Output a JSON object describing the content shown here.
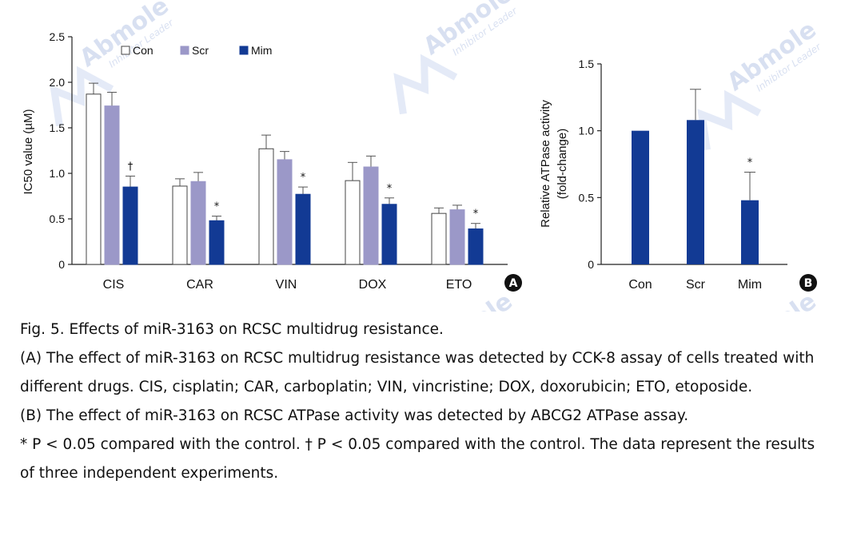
{
  "chart_data": [
    {
      "panel": "A",
      "type": "bar",
      "ylabel": "IC50 value (µM)",
      "ylim": [
        0,
        2.5
      ],
      "yticks": [
        "2.5",
        "2.0",
        "1.5",
        "1.0",
        "0.5",
        "0"
      ],
      "categories": [
        "CIS",
        "CAR",
        "VIN",
        "DOX",
        "ETO"
      ],
      "series": [
        {
          "name": "Con",
          "values": [
            1.87,
            0.86,
            1.27,
            0.92,
            0.56
          ],
          "errors": [
            0.12,
            0.08,
            0.15,
            0.2,
            0.06
          ]
        },
        {
          "name": "Scr",
          "values": [
            1.74,
            0.91,
            1.15,
            1.07,
            0.6
          ],
          "errors": [
            0.15,
            0.1,
            0.09,
            0.12,
            0.05
          ]
        },
        {
          "name": "Mim",
          "values": [
            0.85,
            0.48,
            0.77,
            0.66,
            0.39
          ],
          "errors": [
            0.12,
            0.05,
            0.08,
            0.07,
            0.06
          ]
        }
      ],
      "annotations": [
        {
          "category": "CIS",
          "series": "Mim",
          "text": "†"
        },
        {
          "category": "CAR",
          "series": "Mim",
          "text": "*"
        },
        {
          "category": "VIN",
          "series": "Mim",
          "text": "*"
        },
        {
          "category": "DOX",
          "series": "Mim",
          "text": "*"
        },
        {
          "category": "ETO",
          "series": "Mim",
          "text": "*"
        }
      ],
      "legend": "top-left",
      "badge": "A"
    },
    {
      "panel": "B",
      "type": "bar",
      "ylabel_line1": "Relative ATPase activity",
      "ylabel_line2": "(fold-change)",
      "ylim": [
        0,
        1.5
      ],
      "yticks": [
        "1.5",
        "1.0",
        "0.5",
        "0"
      ],
      "categories": [
        "Con",
        "Scr",
        "Mim"
      ],
      "values": [
        1.0,
        1.08,
        0.48
      ],
      "errors": [
        0,
        0.23,
        0.21
      ],
      "annotations": [
        {
          "category": "Mim",
          "text": "*"
        }
      ],
      "badge": "B"
    }
  ],
  "watermark": {
    "brand": "Abmole",
    "tagline": "Inhibitor Leader"
  },
  "caption": {
    "title": "Fig. 5. Effects of miR-3163 on RCSC multidrug resistance.",
    "panel_a": "(A) The effect of miR-3163 on RCSC multidrug resistance was detected by CCK-8 assay of cells treated with different drugs. CIS, cisplatin; CAR, carboplatin; VIN, vincristine; DOX, doxorubicin; ETO, etoposide.",
    "panel_b": "(B) The effect of miR-3163 on RCSC ATPase activity was detected by ABCG2 ATPase assay.",
    "notes": "* P < 0.05 compared with the control. † P < 0.05 compared with the control. The data represent the results of three independent experiments."
  },
  "colors": {
    "con": "#ffffff",
    "scr": "#9b98c8",
    "mim": "#123a94",
    "axis": "#222222",
    "badge": "#111111"
  }
}
